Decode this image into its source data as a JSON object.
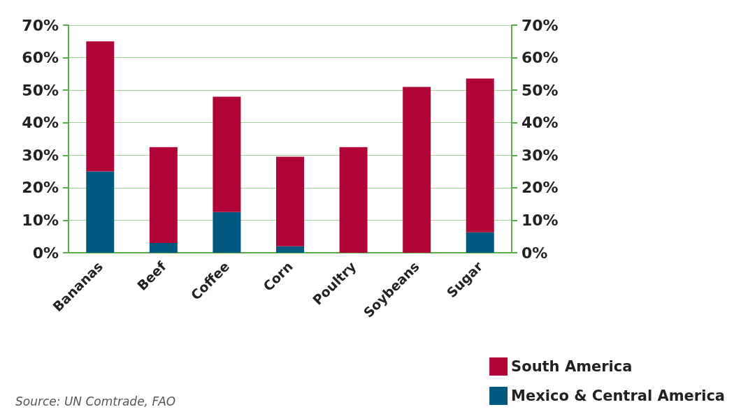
{
  "chart_data": {
    "type": "bar",
    "stacked": true,
    "categories": [
      "Bananas",
      "Beef",
      "Coffee",
      "Corn",
      "Poultry",
      "Soybeans",
      "Sugar"
    ],
    "series": [
      {
        "name": "Mexico & Central America",
        "color": "#005a80",
        "values": [
          25,
          3,
          12.5,
          2,
          0,
          0,
          6.3
        ]
      },
      {
        "name": "South America",
        "color": "#b10537",
        "values": [
          40,
          29.5,
          35.5,
          27.5,
          32.5,
          51,
          47.3
        ]
      }
    ],
    "ylim": [
      0,
      70
    ],
    "yticks": [
      {
        "value": 0,
        "label": "0%"
      },
      {
        "value": 10,
        "label": "10%"
      },
      {
        "value": 20,
        "label": "20%"
      },
      {
        "value": 30,
        "label": "30%"
      },
      {
        "value": 40,
        "label": "40%"
      },
      {
        "value": 50,
        "label": "50%"
      },
      {
        "value": 60,
        "label": "60%"
      },
      {
        "value": 70,
        "label": "70%"
      }
    ],
    "y2lim": [
      0,
      70
    ],
    "y2ticks": [
      {
        "value": 0,
        "label": "0%"
      },
      {
        "value": 10,
        "label": "10%"
      },
      {
        "value": 20,
        "label": "20%"
      },
      {
        "value": 30,
        "label": "30%"
      },
      {
        "value": 40,
        "label": "40%"
      },
      {
        "value": 50,
        "label": "50%"
      },
      {
        "value": 60,
        "label": "60%"
      },
      {
        "value": 70,
        "label": "70%"
      }
    ],
    "grid": "y",
    "legend": "bottom right",
    "annotations": [
      "Source: UN Comtrade, FAO"
    ]
  }
}
